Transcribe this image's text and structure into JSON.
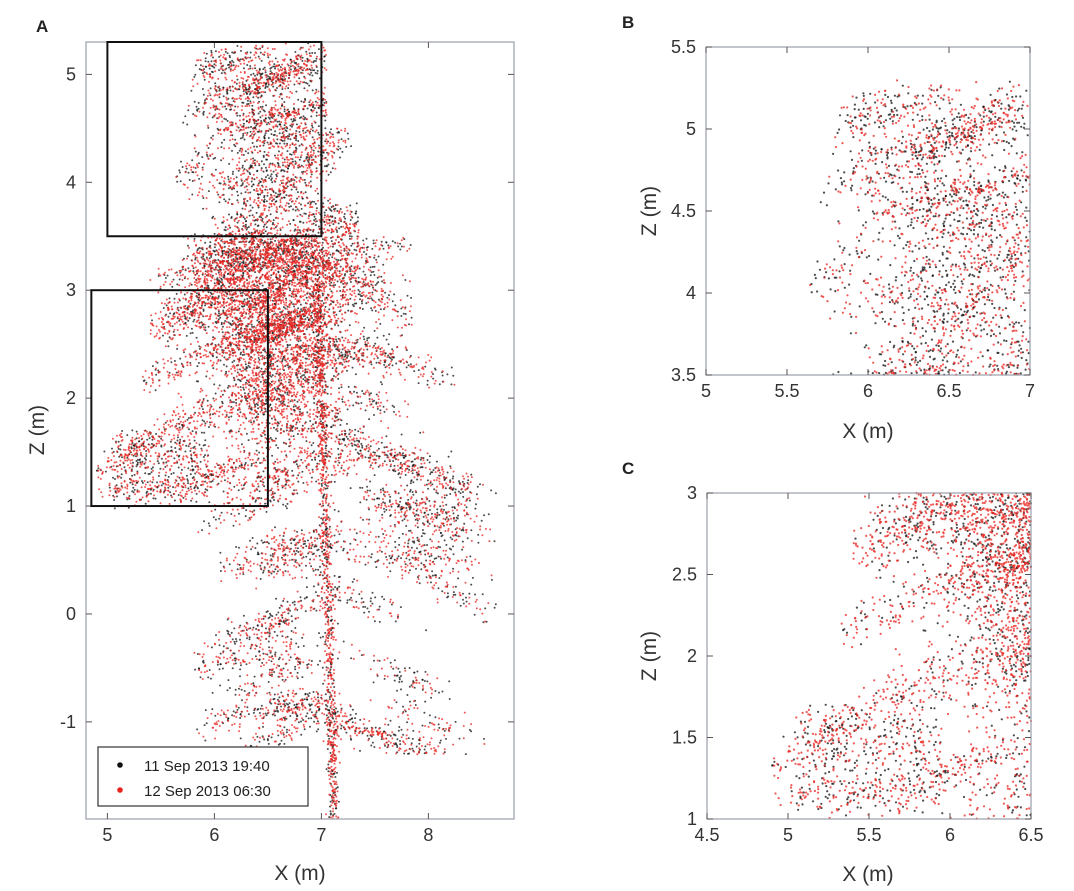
{
  "chart_data": [
    {
      "panel": "A",
      "type": "scatter",
      "xlabel": "X (m)",
      "ylabel": "Z (m)",
      "xlim": [
        4.8,
        8.8
      ],
      "ylim": [
        -1.9,
        5.3
      ],
      "xticks": [
        5,
        6,
        7,
        8
      ],
      "yticks": [
        -1,
        0,
        1,
        2,
        3,
        4,
        5
      ],
      "xtick_labels": [
        "5",
        "6",
        "7",
        "8"
      ],
      "ytick_labels": [
        "-1",
        "0",
        "1",
        "2",
        "3",
        "4",
        "5"
      ],
      "legend_position": "bottom-left",
      "series": [
        {
          "name": "11 Sep 2013 19:40",
          "color": "#111111"
        },
        {
          "name": "12 Sep 2013 06:30",
          "color": "#e8231f"
        }
      ],
      "zoom_boxes": [
        {
          "x": [
            5.0,
            7.0
          ],
          "z": [
            3.5,
            5.3
          ]
        },
        {
          "x": [
            4.85,
            6.5
          ],
          "z": [
            1.0,
            3.0
          ]
        }
      ]
    },
    {
      "panel": "B",
      "type": "scatter",
      "xlabel": "X (m)",
      "ylabel": "Z (m)",
      "xlim": [
        5,
        7
      ],
      "ylim": [
        3.5,
        5.5
      ],
      "xticks": [
        5,
        5.5,
        6,
        6.5,
        7
      ],
      "yticks": [
        3.5,
        4,
        4.5,
        5,
        5.5
      ],
      "xtick_labels": [
        "5",
        "5.5",
        "6",
        "6.5",
        "7"
      ],
      "ytick_labels": [
        "3.5",
        "4",
        "4.5",
        "5",
        "5.5"
      ]
    },
    {
      "panel": "C",
      "type": "scatter",
      "xlabel": "X (m)",
      "ylabel": "Z (m)",
      "xlim": [
        4.5,
        6.5
      ],
      "ylim": [
        1,
        3
      ],
      "xticks": [
        4.5,
        5,
        5.5,
        6,
        6.5
      ],
      "yticks": [
        1,
        1.5,
        2,
        2.5,
        3
      ],
      "xtick_labels": [
        "4.5",
        "5",
        "5.5",
        "6",
        "6.5"
      ],
      "ytick_labels": [
        "1",
        "1.5",
        "2",
        "2.5",
        "3"
      ]
    }
  ]
}
